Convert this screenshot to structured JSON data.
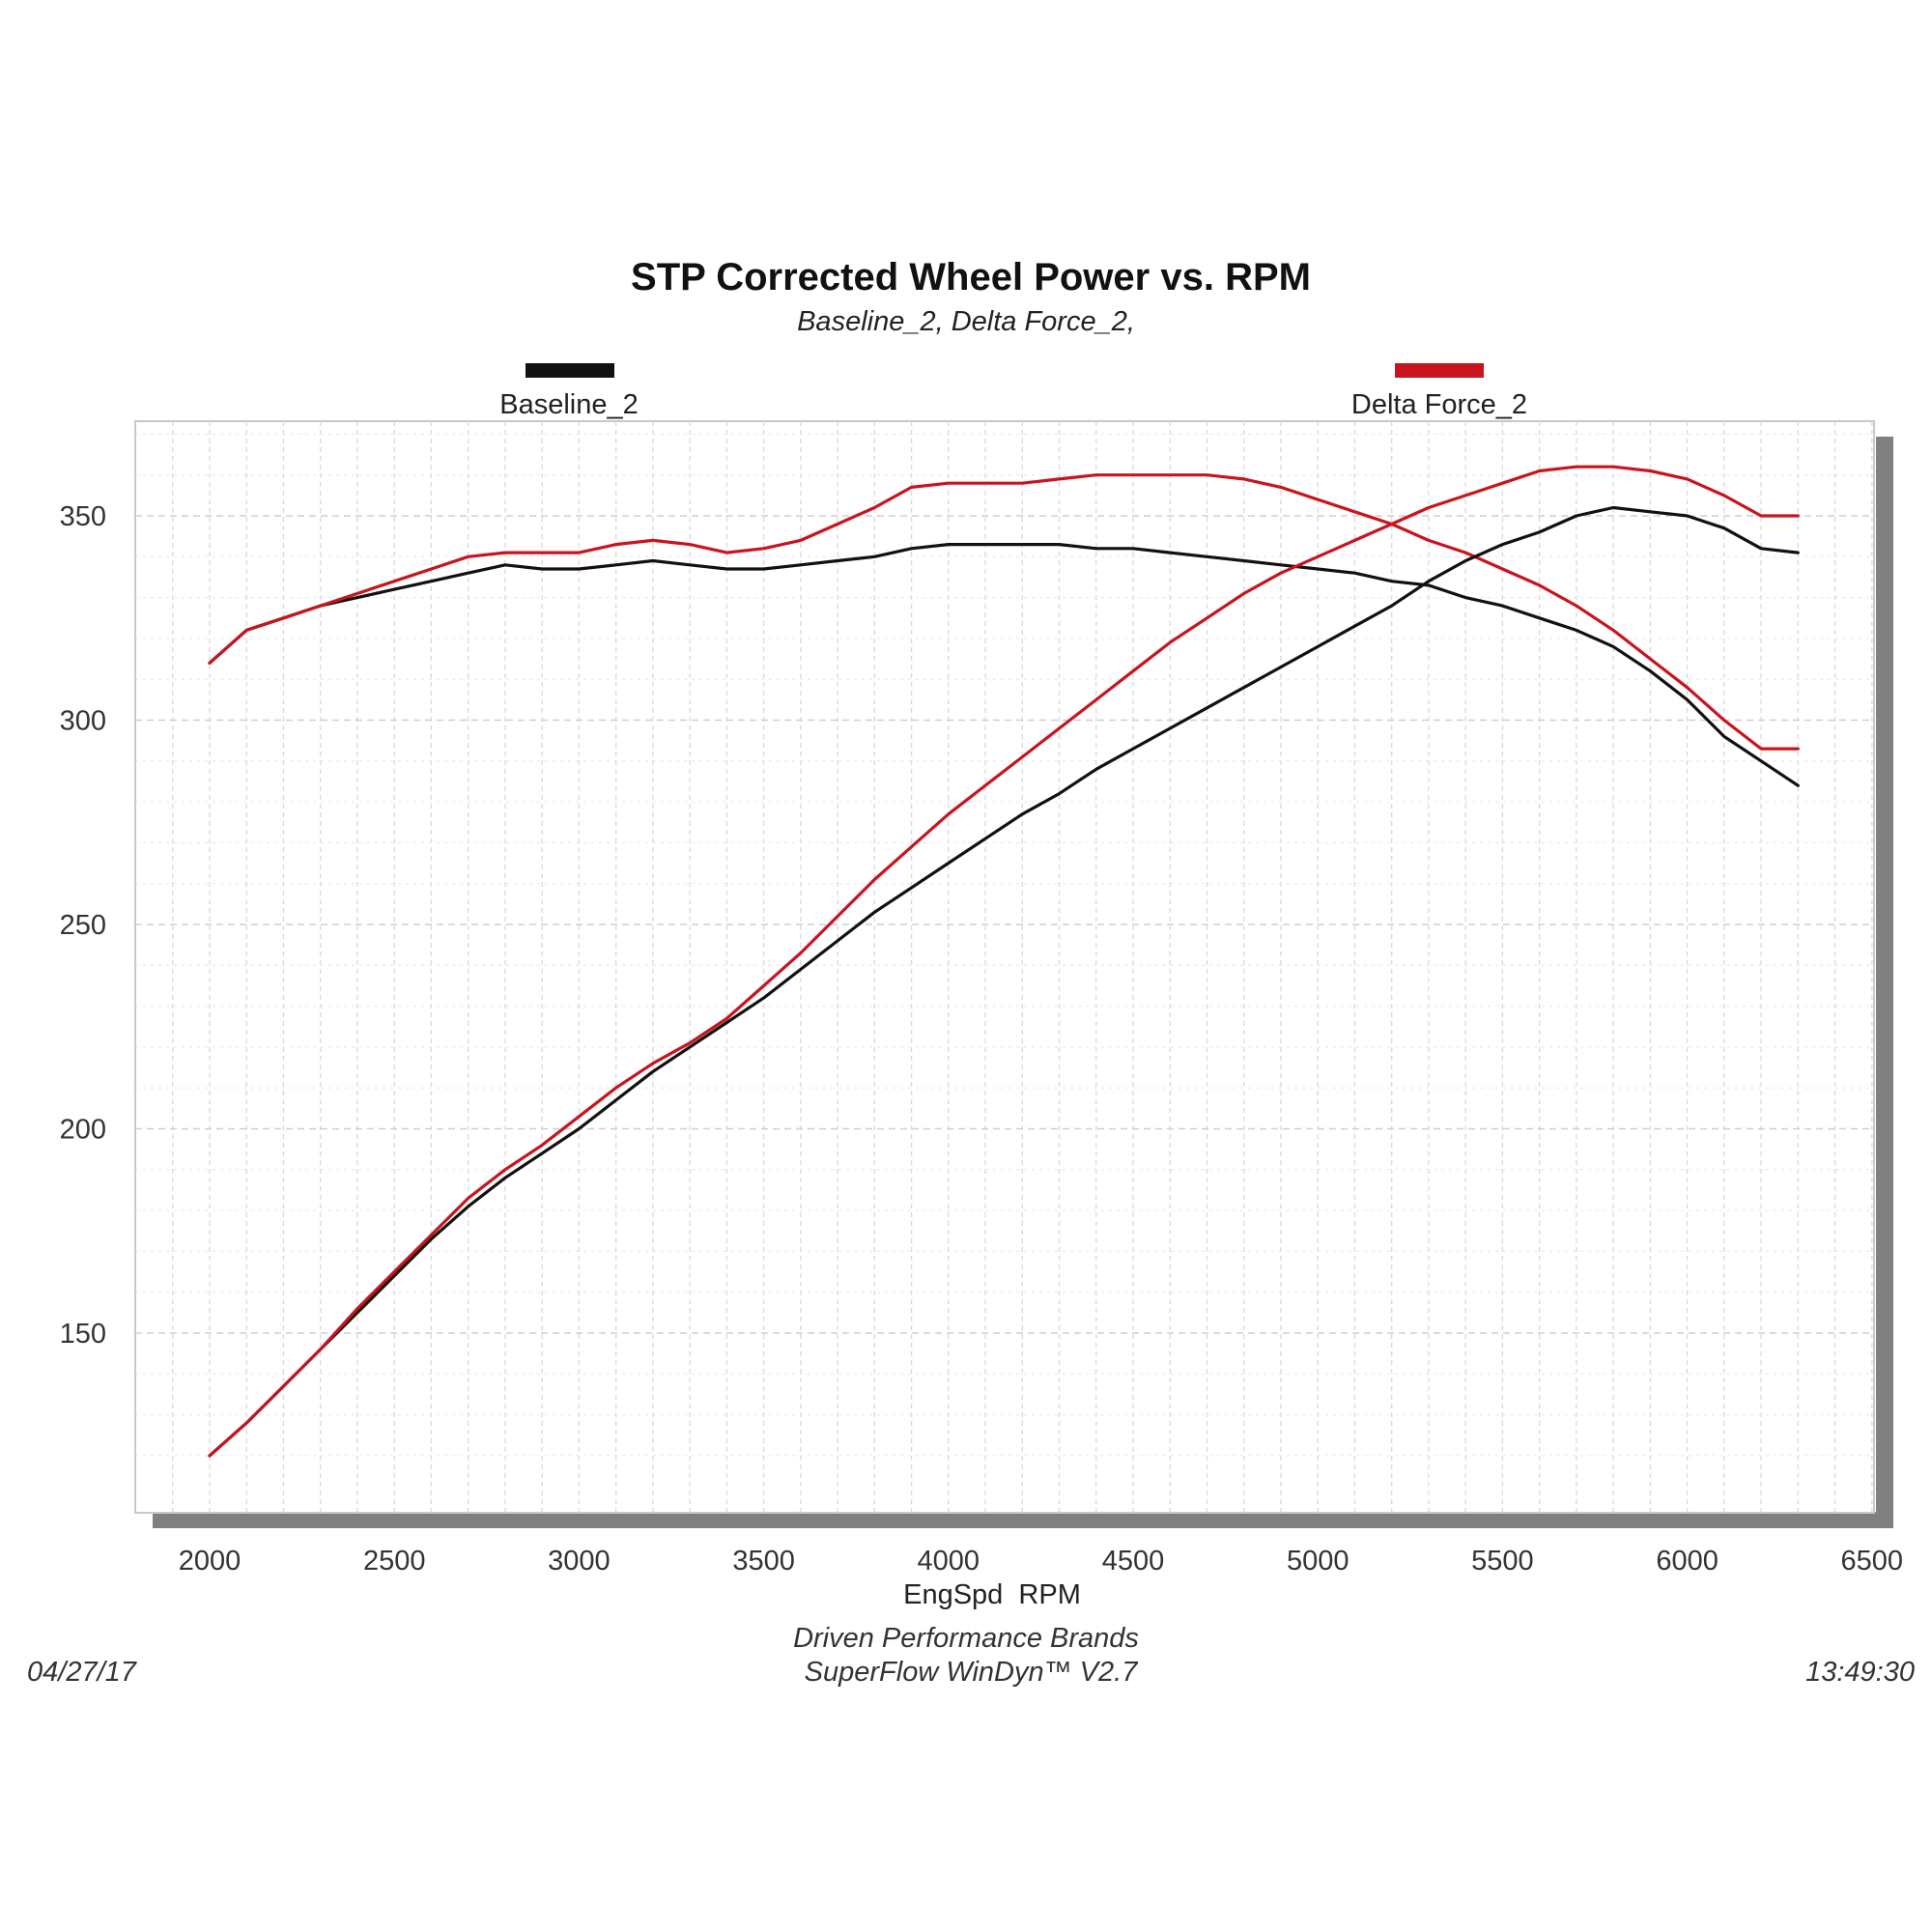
{
  "chart_data": {
    "type": "line",
    "title": "STP Corrected Wheel Power vs. RPM",
    "subtitle": "Baseline_2, Delta Force_2,",
    "xlabel": "EngSpd  RPM",
    "ylabel": "",
    "xlim": [
      1800,
      6500
    ],
    "ylim": [
      105,
      373
    ],
    "xticks": [
      "2000",
      "2500",
      "3000",
      "3500",
      "4000",
      "4500",
      "5000",
      "5500",
      "6000",
      "6500"
    ],
    "yticks": [
      "150",
      "200",
      "250",
      "300",
      "350"
    ],
    "grid": true,
    "legend_position": "top",
    "colors": {
      "baseline": "#111111",
      "delta": "#c8141e",
      "shadow": "#808080"
    },
    "x": [
      2000,
      2100,
      2200,
      2300,
      2400,
      2500,
      2600,
      2700,
      2800,
      2900,
      3000,
      3100,
      3200,
      3300,
      3400,
      3500,
      3600,
      3700,
      3800,
      3900,
      4000,
      4100,
      4200,
      4300,
      4400,
      4500,
      4600,
      4700,
      4800,
      4900,
      5000,
      5100,
      5200,
      5300,
      5400,
      5500,
      5600,
      5700,
      5800,
      5900,
      6000,
      6100,
      6200,
      6300
    ],
    "series": [
      {
        "name": "Baseline_2",
        "legend": "Baseline_2",
        "color": "#111111",
        "metric": "torque",
        "values": [
          314,
          322,
          325,
          328,
          330,
          332,
          334,
          336,
          338,
          337,
          337,
          338,
          339,
          338,
          337,
          337,
          338,
          339,
          340,
          342,
          343,
          343,
          343,
          343,
          342,
          342,
          341,
          340,
          339,
          338,
          337,
          336,
          334,
          333,
          330,
          328,
          325,
          322,
          318,
          312,
          305,
          296,
          290,
          284
        ]
      },
      {
        "name": "Delta Force_2",
        "legend": "Delta Force_2",
        "color": "#c8141e",
        "metric": "torque",
        "values": [
          314,
          322,
          325,
          328,
          331,
          334,
          337,
          340,
          341,
          341,
          341,
          343,
          344,
          343,
          341,
          342,
          344,
          348,
          352,
          357,
          358,
          358,
          358,
          359,
          360,
          360,
          360,
          360,
          359,
          357,
          354,
          351,
          348,
          344,
          341,
          337,
          333,
          328,
          322,
          315,
          308,
          300,
          293,
          293
        ]
      },
      {
        "name": "Baseline_2 HP",
        "color": "#111111",
        "metric": "power",
        "values": [
          120,
          128,
          137,
          146,
          155,
          164,
          173,
          181,
          188,
          194,
          200,
          207,
          214,
          220,
          226,
          232,
          239,
          246,
          253,
          259,
          265,
          271,
          277,
          282,
          288,
          293,
          298,
          303,
          308,
          313,
          318,
          323,
          328,
          334,
          339,
          343,
          346,
          350,
          352,
          351,
          350,
          347,
          342,
          341
        ]
      },
      {
        "name": "Delta Force_2 HP",
        "color": "#c8141e",
        "metric": "power",
        "values": [
          120,
          128,
          137,
          146,
          156,
          165,
          174,
          183,
          190,
          196,
          203,
          210,
          216,
          221,
          227,
          235,
          243,
          252,
          261,
          269,
          277,
          284,
          291,
          298,
          305,
          312,
          319,
          325,
          331,
          336,
          340,
          344,
          348,
          352,
          355,
          358,
          361,
          362,
          362,
          361,
          359,
          355,
          350,
          350
        ]
      }
    ]
  },
  "footer": {
    "company": "Driven Performance Brands",
    "software": "SuperFlow WinDyn™ V2.7",
    "date": "04/27/17",
    "time": "13:49:30"
  }
}
